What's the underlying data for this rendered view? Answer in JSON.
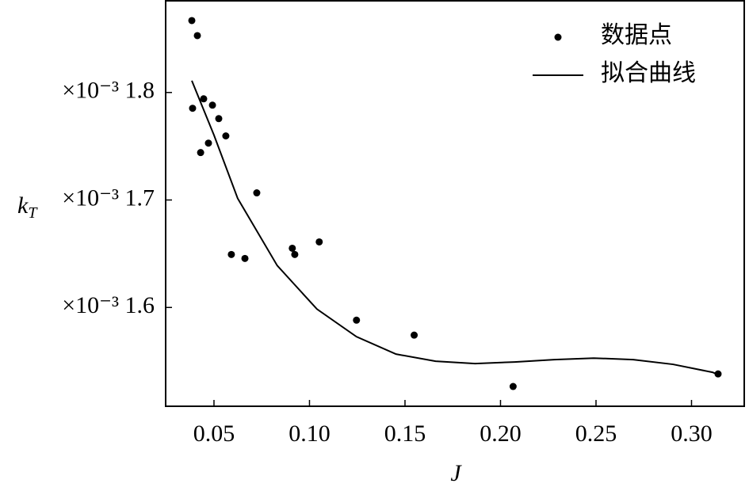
{
  "chart_data": {
    "type": "scatter",
    "xlabel": "J",
    "ylabel": "k",
    "ylabel_subscript": "T",
    "xlim": [
      0.0247,
      0.3276
    ],
    "ylim": [
      1.5081,
      1.8853
    ],
    "xticks": [
      0.05,
      {
        "value": 0.1,
        "label": "0.10"
      },
      0.15,
      {
        "value": 0.2,
        "label": "0.20"
      },
      0.25,
      {
        "value": 0.3,
        "label": "0.30"
      }
    ],
    "yticks": [
      {
        "value": 1.6,
        "label": "×10⁻³ 1.6"
      },
      {
        "value": 1.7,
        "label": "×10⁻³ 1.7"
      },
      {
        "value": 1.8,
        "label": "×10⁻³ 1.8"
      }
    ],
    "legend": "upper right",
    "series": [
      {
        "name": "数据点",
        "type": "scatter",
        "color": "#000000",
        "x": [
          0.0384,
          0.0413,
          0.0388,
          0.0446,
          0.0492,
          0.0525,
          0.0562,
          0.0471,
          0.043,
          0.0724,
          0.0591,
          0.0662,
          0.0923,
          0.091,
          0.1051,
          0.1246,
          0.1548,
          0.2066,
          0.3139
        ],
        "values": [
          1.8669,
          1.8529,
          1.7853,
          1.7941,
          1.7882,
          1.7757,
          1.7596,
          1.7529,
          1.7441,
          1.7066,
          1.6493,
          1.6456,
          1.6493,
          1.6551,
          1.661,
          1.5882,
          1.5743,
          1.5265,
          1.5382
        ]
      },
      {
        "name": "拟合曲线",
        "type": "line",
        "color": "#000000",
        "x": [
          0.0384,
          0.05,
          0.0624,
          0.0831,
          0.1039,
          0.1246,
          0.1453,
          0.166,
          0.1867,
          0.2074,
          0.2281,
          0.2488,
          0.2695,
          0.2903,
          0.311,
          0.3139
        ],
        "values": [
          1.811,
          1.7603,
          1.7015,
          1.639,
          1.5985,
          1.5728,
          1.5566,
          1.55,
          1.5478,
          1.5493,
          1.5515,
          1.5529,
          1.5515,
          1.5471,
          1.5397,
          1.5375
        ]
      }
    ]
  }
}
